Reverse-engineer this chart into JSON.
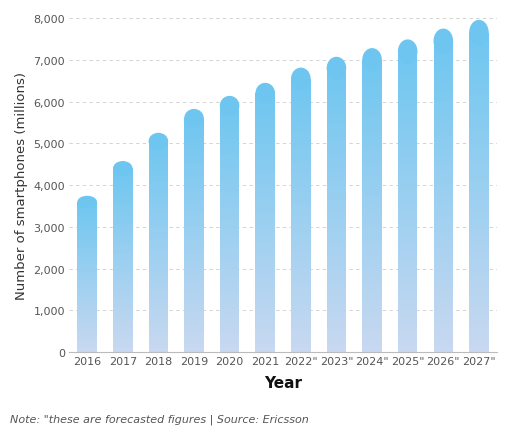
{
  "years": [
    "2016",
    "2017",
    "2018",
    "2019",
    "2020",
    "2021",
    "2022\"",
    "2023\"",
    "2024\"",
    "2025\"",
    "2026\"",
    "2027\""
  ],
  "values": [
    3600,
    4400,
    5050,
    5600,
    5900,
    6200,
    6550,
    6800,
    7000,
    7200,
    7450,
    7650
  ],
  "bar_color_top": "#6EC6F0",
  "bar_color_bottom": "#C8D8F0",
  "ylabel": "Number of smartphones (millions)",
  "xlabel": "Year",
  "ylim": [
    0,
    8000
  ],
  "yticks": [
    0,
    1000,
    2000,
    3000,
    4000,
    5000,
    6000,
    7000,
    8000
  ],
  "note": "Note: \"these are forecasted figures | Source: Ericsson",
  "background_color": "#ffffff",
  "grid_color": "#cccccc",
  "ylabel_fontsize": 9.5,
  "xlabel_fontsize": 11,
  "tick_fontsize": 8,
  "note_fontsize": 8,
  "bar_width": 0.55
}
